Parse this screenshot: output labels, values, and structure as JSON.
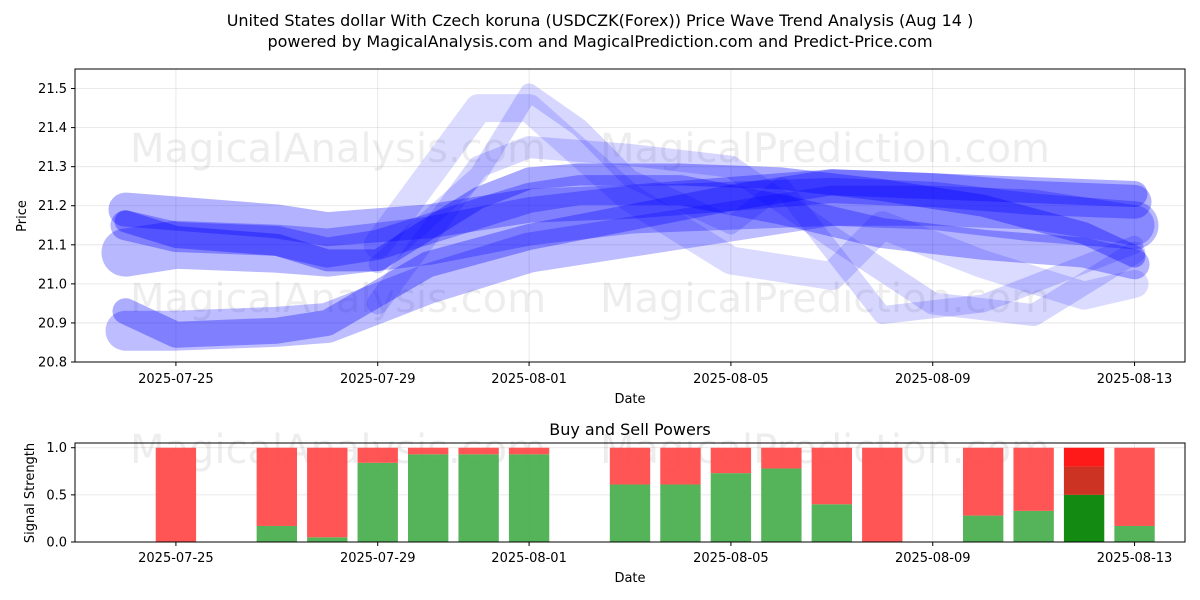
{
  "header": {
    "title_line1": "United States dollar With Czech koruna (USDCZK(Forex)) Price Wave Trend Analysis (Aug 14 )",
    "title_line2": "powered by MagicalAnalysis.com and MagicalPrediction.com and Predict-Price.com"
  },
  "watermarks": [
    "MagicalAnalysis.com",
    "MagicalPrediction.com"
  ],
  "chart_data": [
    {
      "type": "line",
      "xlabel": "Date",
      "ylabel": "Price",
      "ylim": [
        20.8,
        21.55
      ],
      "yticks": [
        20.8,
        20.9,
        21.0,
        21.1,
        21.2,
        21.3,
        21.4,
        21.5
      ],
      "xlim": [
        "2025-07-23",
        "2025-08-14"
      ],
      "xticks": [
        "2025-07-25",
        "2025-07-29",
        "2025-08-01",
        "2025-08-05",
        "2025-08-09",
        "2025-08-13"
      ],
      "grid": true,
      "series": [
        {
          "x": [
            "2025-07-24",
            "2025-07-25",
            "2025-07-27",
            "2025-07-28",
            "2025-07-30",
            "2025-08-01",
            "2025-08-03",
            "2025-08-05",
            "2025-08-07",
            "2025-08-09",
            "2025-08-11",
            "2025-08-13"
          ],
          "values": [
            21.19,
            21.18,
            21.16,
            21.14,
            21.16,
            21.2,
            21.21,
            21.23,
            21.25,
            21.24,
            21.22,
            21.21
          ]
        },
        {
          "x": [
            "2025-07-24",
            "2025-07-25",
            "2025-07-27",
            "2025-07-28",
            "2025-07-30",
            "2025-08-01",
            "2025-08-03",
            "2025-08-05",
            "2025-08-07",
            "2025-08-09",
            "2025-08-11",
            "2025-08-13"
          ],
          "values": [
            21.08,
            21.1,
            21.09,
            21.08,
            21.11,
            21.16,
            21.19,
            21.2,
            21.21,
            21.2,
            21.17,
            21.15
          ]
        },
        {
          "x": [
            "2025-07-24",
            "2025-07-25",
            "2025-07-27",
            "2025-07-28",
            "2025-07-30",
            "2025-08-01",
            "2025-08-03",
            "2025-08-05",
            "2025-08-07",
            "2025-08-09",
            "2025-08-11",
            "2025-08-13"
          ],
          "values": [
            20.93,
            20.87,
            20.88,
            20.9,
            21.05,
            21.12,
            21.17,
            21.22,
            21.26,
            21.25,
            21.24,
            21.23
          ]
        },
        {
          "x": [
            "2025-07-24",
            "2025-07-25",
            "2025-07-27",
            "2025-07-28",
            "2025-07-30",
            "2025-08-01",
            "2025-08-03",
            "2025-08-05",
            "2025-08-07",
            "2025-08-09",
            "2025-08-11",
            "2025-08-13"
          ],
          "values": [
            20.88,
            20.88,
            20.89,
            20.9,
            21.0,
            21.08,
            21.12,
            21.16,
            21.2,
            21.2,
            21.19,
            21.15
          ]
        },
        {
          "x": [
            "2025-07-24",
            "2025-07-25",
            "2025-07-27",
            "2025-07-28",
            "2025-07-29",
            "2025-07-31",
            "2025-08-01",
            "2025-08-02",
            "2025-08-04",
            "2025-08-06",
            "2025-08-08",
            "2025-08-10",
            "2025-08-12",
            "2025-08-13"
          ],
          "values": [
            21.16,
            21.12,
            21.1,
            21.06,
            21.06,
            21.22,
            21.27,
            21.28,
            21.28,
            21.27,
            21.24,
            21.2,
            21.13,
            21.07
          ]
        },
        {
          "x": [
            "2025-07-24",
            "2025-07-25",
            "2025-07-27",
            "2025-07-28",
            "2025-07-29",
            "2025-07-31",
            "2025-08-01",
            "2025-08-02",
            "2025-08-04",
            "2025-08-06",
            "2025-08-08",
            "2025-08-10",
            "2025-08-12",
            "2025-08-13"
          ],
          "values": [
            21.15,
            21.12,
            21.11,
            21.08,
            21.1,
            21.18,
            21.22,
            21.24,
            21.24,
            21.19,
            21.13,
            21.1,
            21.08,
            21.05
          ]
        },
        {
          "x": [
            "2025-07-29",
            "2025-07-31",
            "2025-08-01",
            "2025-08-02",
            "2025-08-03",
            "2025-08-05",
            "2025-08-06",
            "2025-08-08",
            "2025-08-10",
            "2025-08-12",
            "2025-08-13"
          ],
          "values": [
            21.05,
            21.28,
            21.49,
            21.4,
            21.27,
            21.15,
            21.25,
            20.92,
            20.95,
            21.05,
            21.1
          ]
        },
        {
          "x": [
            "2025-07-29",
            "2025-07-31",
            "2025-08-01",
            "2025-08-03",
            "2025-08-05",
            "2025-08-07",
            "2025-08-08",
            "2025-08-10",
            "2025-08-12",
            "2025-08-13"
          ],
          "values": [
            21.1,
            21.45,
            21.45,
            21.22,
            21.06,
            21.02,
            21.15,
            21.05,
            20.97,
            21.0
          ]
        },
        {
          "x": [
            "2025-07-29",
            "2025-07-31",
            "2025-08-01",
            "2025-08-03",
            "2025-08-05",
            "2025-08-07",
            "2025-08-09",
            "2025-08-11",
            "2025-08-13"
          ],
          "values": [
            20.95,
            21.3,
            21.35,
            21.33,
            21.3,
            21.12,
            20.95,
            20.92,
            21.08
          ]
        }
      ]
    },
    {
      "type": "bar",
      "title": "Buy and Sell Powers",
      "xlabel": "Date",
      "ylabel": "Signal Strength",
      "ylim": [
        0,
        1.05
      ],
      "yticks": [
        0.0,
        0.5,
        1.0
      ],
      "xlim": [
        "2025-07-23",
        "2025-08-14"
      ],
      "xticks": [
        "2025-07-25",
        "2025-07-29",
        "2025-08-01",
        "2025-08-05",
        "2025-08-09",
        "2025-08-13"
      ],
      "categories": [
        "2025-07-25",
        "2025-07-27",
        "2025-07-28",
        "2025-07-29",
        "2025-07-30",
        "2025-07-31",
        "2025-08-01",
        "2025-08-03",
        "2025-08-04",
        "2025-08-05",
        "2025-08-06",
        "2025-08-07",
        "2025-08-08",
        "2025-08-10",
        "2025-08-11",
        "2025-08-12",
        "2025-08-13"
      ],
      "series": [
        {
          "values": [
            0.0,
            0.17,
            0.05,
            0.84,
            0.93,
            0.93,
            0.93,
            0.61,
            0.61,
            0.73,
            0.78,
            0.4,
            0.0,
            0.28,
            0.33,
            0.5,
            0.17
          ]
        },
        {
          "values": [
            1.0,
            0.83,
            0.95,
            0.16,
            0.07,
            0.07,
            0.07,
            0.39,
            0.39,
            0.27,
            0.22,
            0.6,
            1.0,
            0.72,
            0.67,
            0.5,
            0.83
          ]
        }
      ],
      "highlight_index": 15,
      "colors": {
        "buy": "#4caf50",
        "sell": "#ff4c4c",
        "buy_highlight": "#138b13",
        "sell_highlight_top": "#ff1a1a",
        "sell_highlight_bottom": "#cc3322"
      }
    }
  ],
  "colors": {
    "band": "#0000ff",
    "grid": "#b0b0b0",
    "axis": "#000000"
  }
}
